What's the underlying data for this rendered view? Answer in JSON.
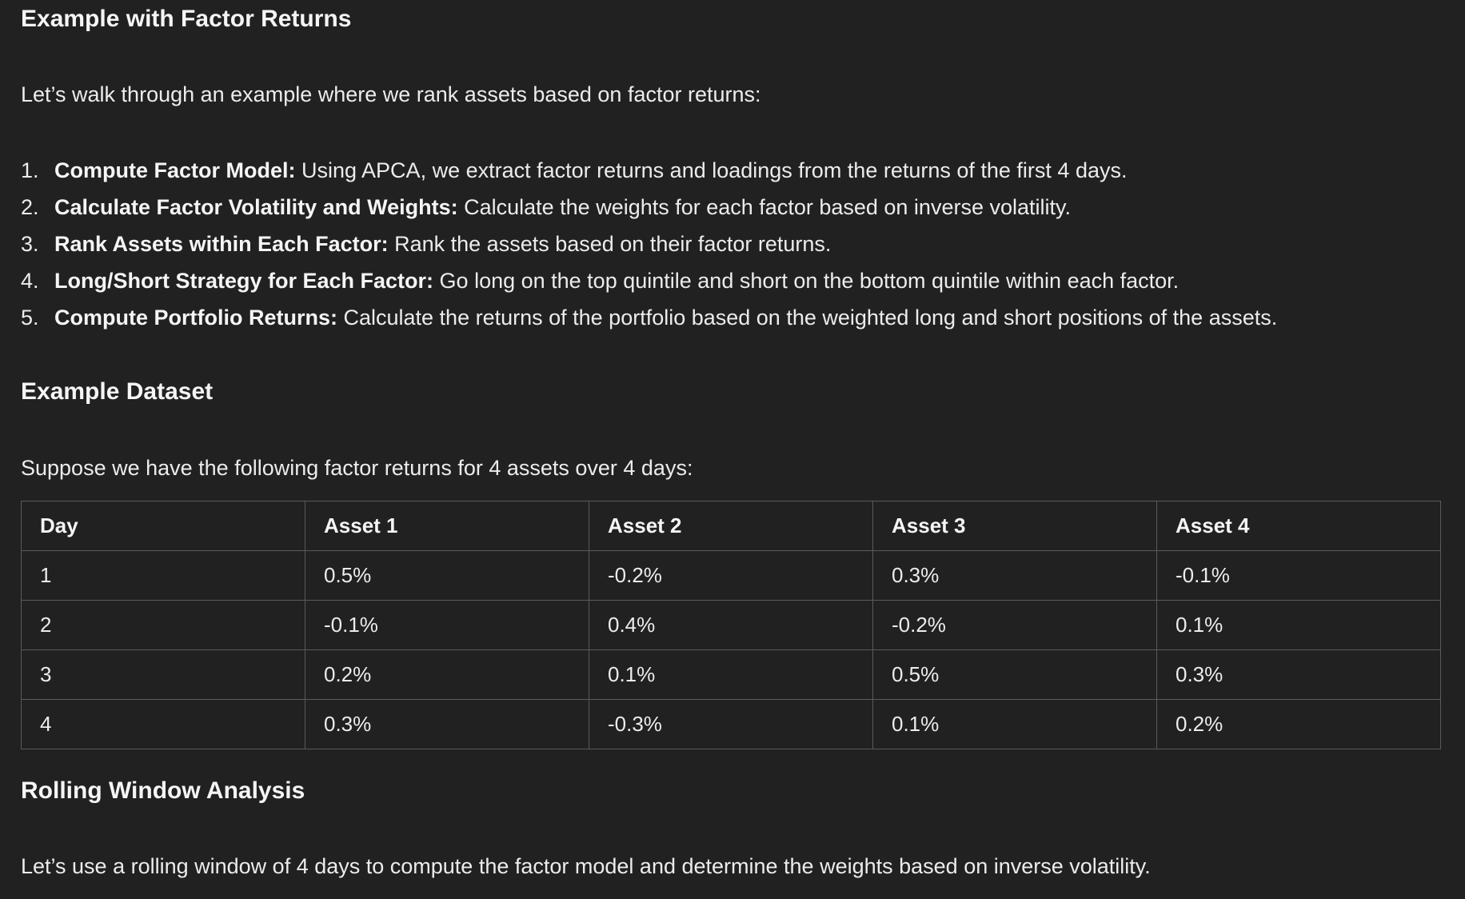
{
  "section1": {
    "heading": "Example with Factor Returns",
    "intro": "Let’s walk through an example where we rank assets based on factor returns:"
  },
  "steps": [
    {
      "num": "1.",
      "bold": "Compute Factor Model:",
      "text": " Using APCA, we extract factor returns and loadings from the returns of the first 4 days."
    },
    {
      "num": "2.",
      "bold": "Calculate Factor Volatility and Weights:",
      "text": " Calculate the weights for each factor based on inverse volatility."
    },
    {
      "num": "3.",
      "bold": "Rank Assets within Each Factor:",
      "text": " Rank the assets based on their factor returns."
    },
    {
      "num": "4.",
      "bold": "Long/Short Strategy for Each Factor:",
      "text": " Go long on the top quintile and short on the bottom quintile within each factor."
    },
    {
      "num": "5.",
      "bold": "Compute Portfolio Returns:",
      "text": " Calculate the returns of the portfolio based on the weighted long and short positions of the assets."
    }
  ],
  "section2": {
    "heading": "Example Dataset",
    "intro": "Suppose we have the following factor returns for 4 assets over 4 days:"
  },
  "table": {
    "headers": [
      "Day",
      "Asset 1",
      "Asset 2",
      "Asset 3",
      "Asset 4"
    ],
    "rows": [
      [
        "1",
        "0.5%",
        "-0.2%",
        "0.3%",
        "-0.1%"
      ],
      [
        "2",
        "-0.1%",
        "0.4%",
        "-0.2%",
        "0.1%"
      ],
      [
        "3",
        "0.2%",
        "0.1%",
        "0.5%",
        "0.3%"
      ],
      [
        "4",
        "0.3%",
        "-0.3%",
        "0.1%",
        "0.2%"
      ]
    ]
  },
  "section3": {
    "heading": "Rolling Window Analysis",
    "intro": "Let’s use a rolling window of 4 days to compute the factor model and determine the weights based on inverse volatility."
  }
}
